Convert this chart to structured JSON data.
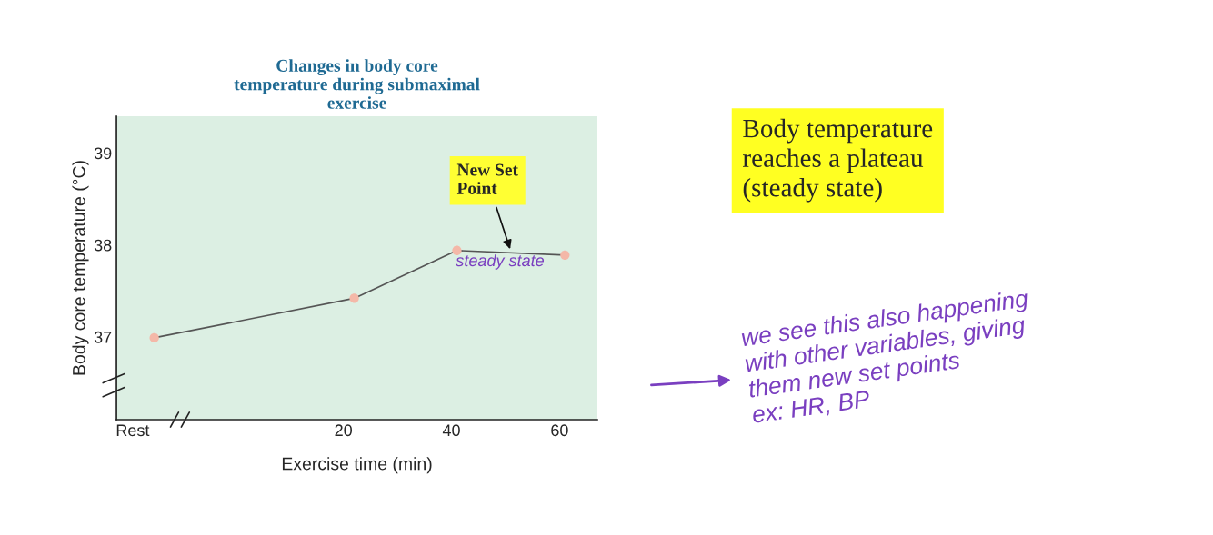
{
  "chart_data": {
    "type": "line",
    "title": "Changes in body core\ntemperature during submaximal\nexercise",
    "xlabel": "Exercise time (min)",
    "ylabel": "Body core temperature (°C)",
    "x": [
      -15,
      22,
      41,
      61
    ],
    "series": [
      {
        "color": "#555555",
        "values": [
          36.99,
          37.42,
          37.94,
          37.89
        ]
      }
    ],
    "marker": "circle",
    "line_style": "solid",
    "grid": false,
    "legend": false,
    "xlim": [
      -22,
      67
    ],
    "xticks": [
      {
        "value": -19,
        "label": "Rest"
      },
      20,
      40,
      60
    ],
    "ylim": [
      36.1,
      39.4
    ],
    "yticks": [
      37,
      38,
      39
    ],
    "annotations": [
      {
        "text": "New Set\nPoint",
        "x": 51,
        "y": 37.93
      },
      "steady state",
      "Body temperature\nreaches a plateau\n(steady state)",
      "we see this also happening\nwith other variables, giving\nthem new set points\nex: HR, BP"
    ]
  }
}
